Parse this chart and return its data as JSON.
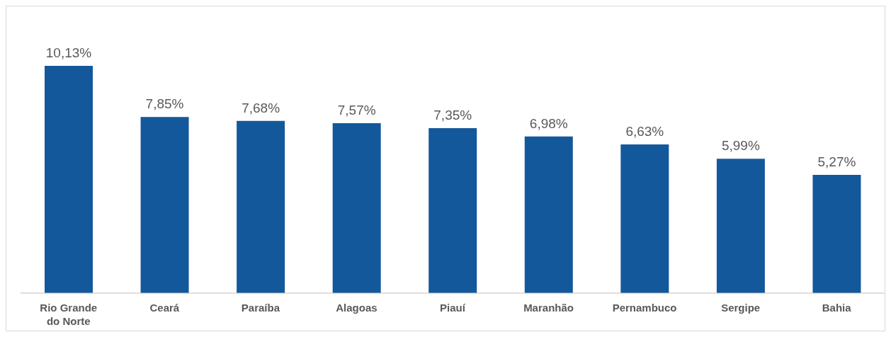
{
  "chart_data": {
    "type": "bar",
    "categories": [
      "Rio Grande do Norte",
      "Ceará",
      "Paraíba",
      "Alagoas",
      "Piauí",
      "Maranhão",
      "Pernambuco",
      "Sergipe",
      "Bahia"
    ],
    "values": [
      10.13,
      7.85,
      7.68,
      7.57,
      7.35,
      6.98,
      6.63,
      5.99,
      5.27
    ],
    "value_labels": [
      "10,13%",
      "7,85%",
      "7,68%",
      "7,57%",
      "7,35%",
      "6,98%",
      "6,63%",
      "5,99%",
      "5,27%"
    ],
    "color": "#14589c"
  }
}
